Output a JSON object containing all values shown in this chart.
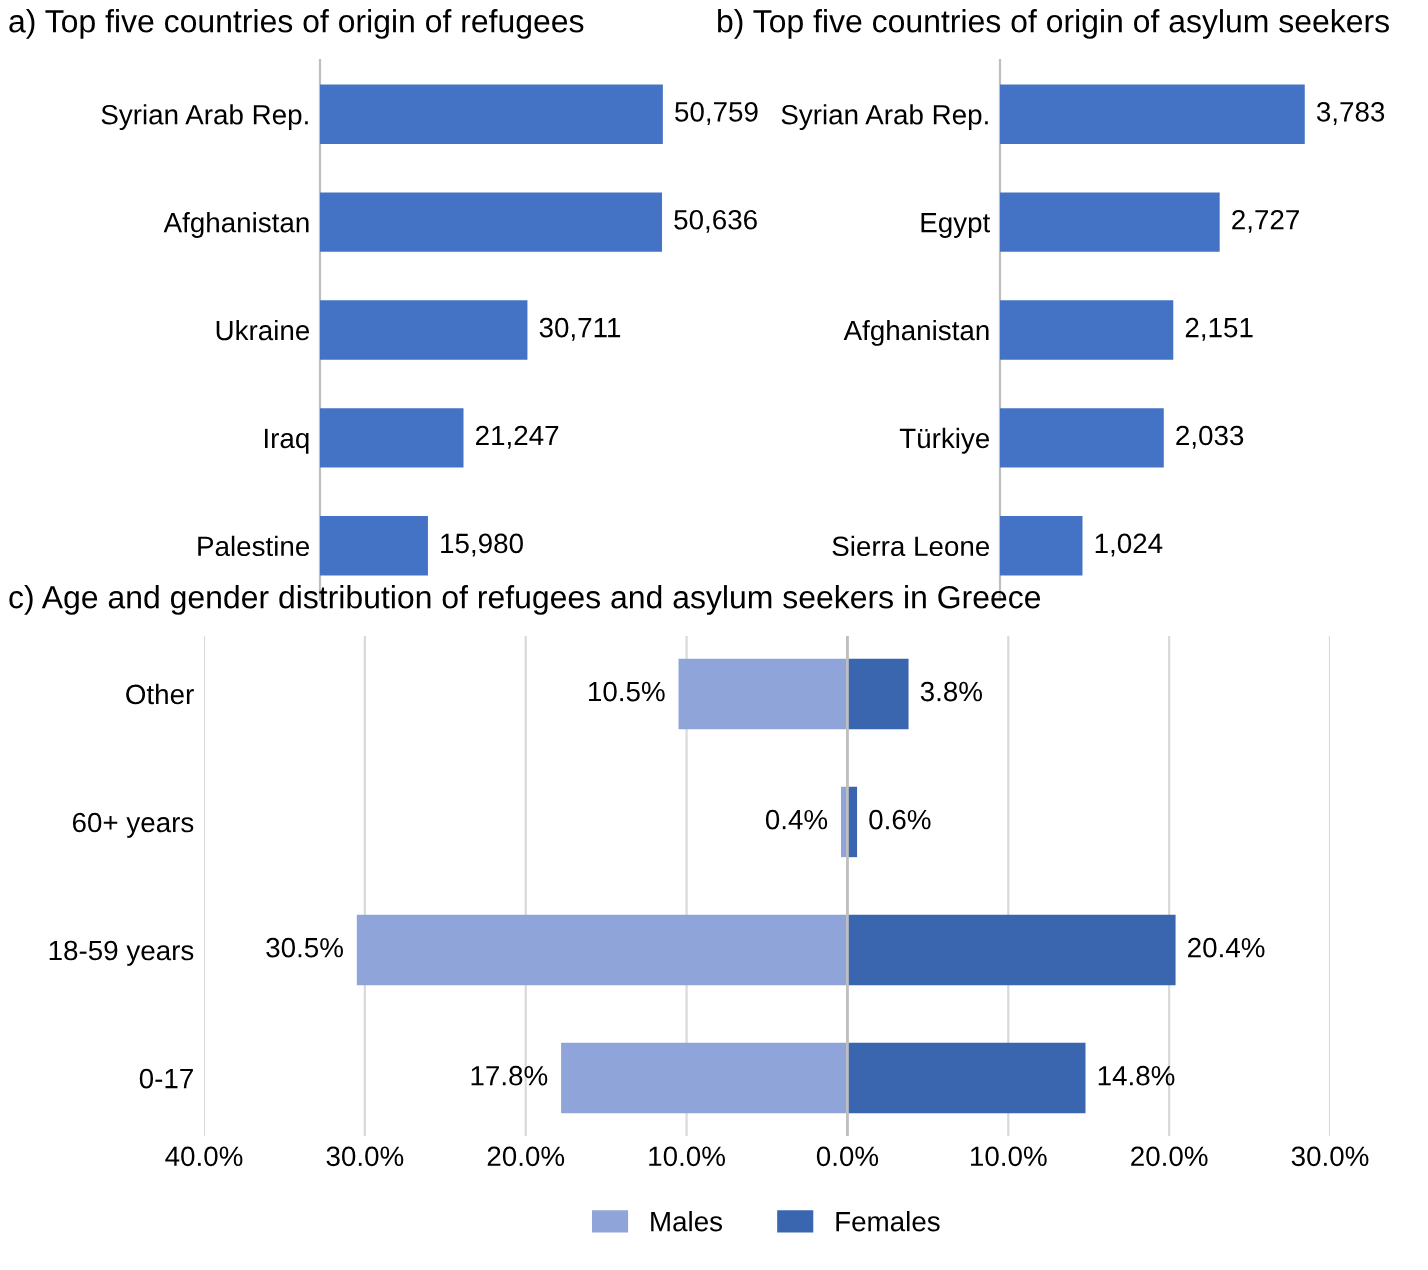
{
  "chart_data": [
    {
      "type": "bar",
      "orientation": "horizontal",
      "title": "a) Top five countries of origin of refugees",
      "categories": [
        "Syrian Arab Rep.",
        "Afghanistan",
        "Ukraine",
        "Iraq",
        "Palestine"
      ],
      "values": [
        50759,
        50636,
        30711,
        21247,
        15980
      ],
      "color": "#4472c4",
      "value_labels": [
        "50,759",
        "50,636",
        "30,711",
        "21,247",
        "15,980"
      ],
      "tick_labels": "y"
    },
    {
      "type": "bar",
      "orientation": "horizontal",
      "title": "b) Top five countries of origin of asylum seekers",
      "categories": [
        "Syrian Arab Rep.",
        "Egypt",
        "Afghanistan",
        "Türkiye",
        "Sierra Leone"
      ],
      "values": [
        3783,
        2727,
        2151,
        2033,
        1024
      ],
      "color": "#4472c4",
      "value_labels": [
        "3,783",
        "2,727",
        "2,151",
        "2,033",
        "1,024"
      ],
      "tick_labels": "y"
    },
    {
      "type": "bar",
      "orientation": "horizontal",
      "title": "c) Age and gender distribution of refugees and asylum seekers in Greece",
      "categories": [
        "Other",
        "60+ years",
        "18-59 years",
        "0-17"
      ],
      "xlim": [
        -40,
        30
      ],
      "xticks": [
        {
          "value": -40,
          "label": "40.0%"
        },
        {
          "value": -30,
          "label": "30.0%"
        },
        {
          "value": -20,
          "label": "20.0%"
        },
        {
          "value": -10,
          "label": "10.0%"
        },
        {
          "value": 0,
          "label": "0.0%"
        },
        {
          "value": 10,
          "label": "10.0%"
        },
        {
          "value": 20,
          "label": "20.0%"
        },
        {
          "value": 30,
          "label": "30.0%"
        }
      ],
      "grid": "x",
      "legend": "bottom",
      "series": [
        {
          "name": "Males",
          "color": "#8fa5d9",
          "values": [
            10.5,
            0.4,
            30.5,
            17.8
          ],
          "base": [
            -10.5,
            -0.4,
            -30.5,
            -17.8
          ],
          "value_labels": [
            "10.5%",
            "0.4%",
            "30.5%",
            "17.8%"
          ]
        },
        {
          "name": "Females",
          "color": "#3a66b0",
          "values": [
            3.8,
            0.6,
            20.4,
            14.8
          ],
          "value_labels": [
            "3.8%",
            "0.6%",
            "20.4%",
            "14.8%"
          ]
        }
      ]
    }
  ]
}
